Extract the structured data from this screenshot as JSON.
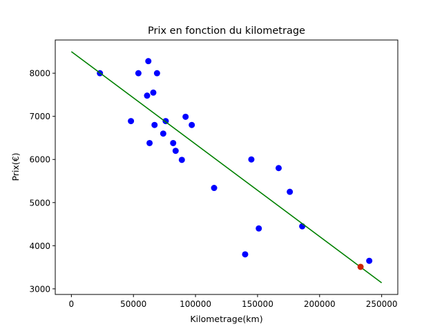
{
  "chart_data": {
    "type": "scatter",
    "title": "Prix en fonction du kilometrage",
    "xlabel": "Kilometrage(km)",
    "ylabel": "Prix(€)",
    "xlim": [
      -13000,
      263000
    ],
    "ylim": [
      2870,
      8770
    ],
    "x_ticks": [
      0,
      50000,
      100000,
      150000,
      200000,
      250000
    ],
    "y_ticks": [
      3000,
      4000,
      5000,
      6000,
      7000,
      8000
    ],
    "grid": false,
    "colors": {
      "points": "#0000ff",
      "line": "#008000",
      "highlight": "#cc2200"
    },
    "series": [
      {
        "type": "scatter",
        "x": [
          23000,
          48000,
          54000,
          61000,
          62000,
          63000,
          66000,
          67000,
          69000,
          74000,
          76000,
          82000,
          84000,
          89000,
          92000,
          97000,
          115000,
          140000,
          145000,
          151000,
          167000,
          176000,
          186000,
          240000
        ],
        "y": [
          8000,
          6890,
          8000,
          7480,
          8280,
          6380,
          7550,
          6800,
          8000,
          6600,
          6890,
          6380,
          6200,
          5990,
          6990,
          6800,
          5340,
          3800,
          6000,
          4400,
          5800,
          5250,
          4450,
          3650
        ]
      },
      {
        "type": "line",
        "x": [
          0,
          250000
        ],
        "y": [
          8500,
          3140
        ]
      },
      {
        "type": "scatter",
        "x": [
          233000
        ],
        "y": [
          3510
        ]
      }
    ]
  }
}
